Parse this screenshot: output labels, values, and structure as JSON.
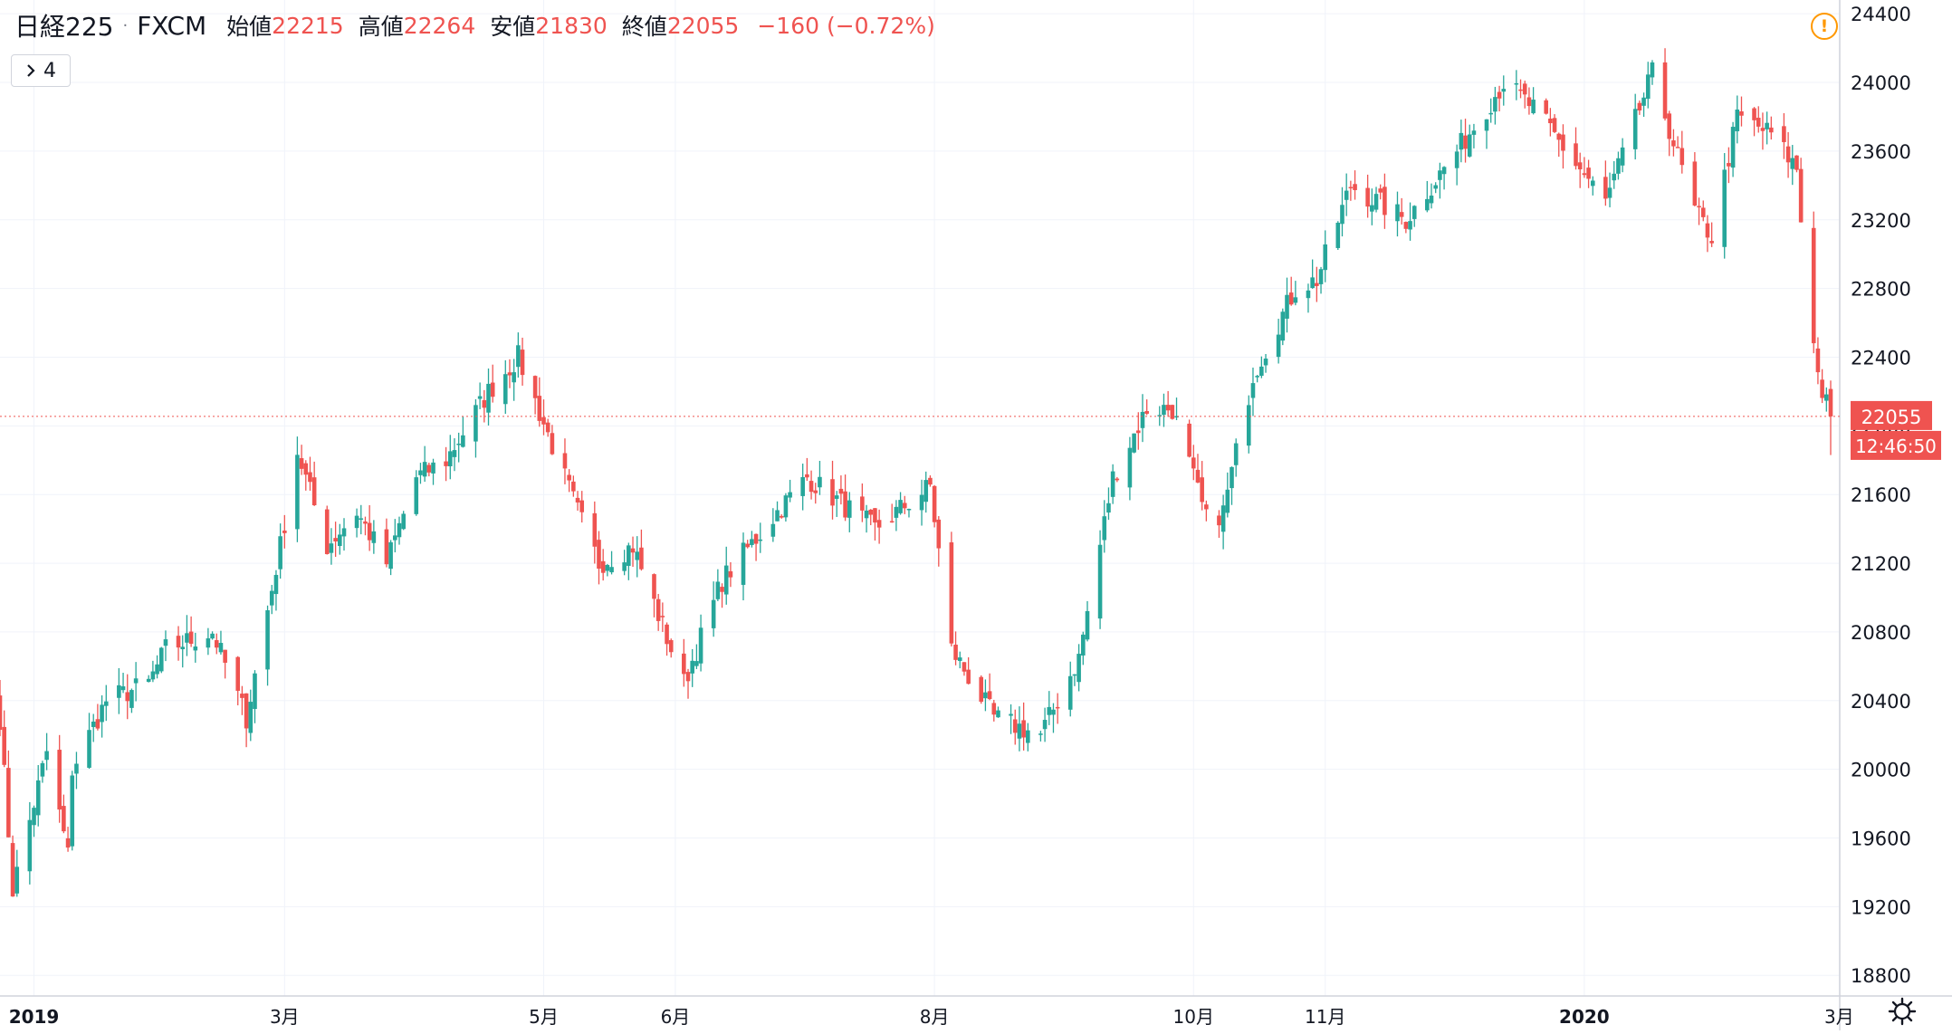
{
  "header": {
    "symbol": "日経225",
    "separator": "·",
    "source": "FXCM",
    "open_label": "始値",
    "open": "22215",
    "high_label": "高値",
    "high": "22264",
    "low_label": "安値",
    "low": "21830",
    "close_label": "終値",
    "close": "22055",
    "change": "−160 (−0.72%)",
    "collapse_count": "4"
  },
  "price_axis": {
    "last_price": "22055",
    "countdown": "12:46:50"
  },
  "colors": {
    "up": "#26a69a",
    "down": "#ef5350",
    "grid": "#f0f3fa",
    "text": "#131722",
    "warning": "#ff9800"
  },
  "icons": {
    "collapse": "chevron-right-icon",
    "warning": "warning-icon",
    "settings": "gear-icon"
  },
  "chart_data": {
    "type": "candlestick",
    "title": "日経225 · FXCM",
    "interval": "daily",
    "x_range": [
      "2018-12-24",
      "2020-02-28"
    ],
    "ylim": [
      18680,
      24480
    ],
    "y_ticks": [
      18800,
      19200,
      19600,
      20000,
      20400,
      20800,
      21200,
      21600,
      22000,
      22400,
      22800,
      23200,
      23600,
      24000,
      24400
    ],
    "x_ticks": [
      {
        "date": "2019-01-01",
        "label": "2019",
        "bold": true
      },
      {
        "date": "2019-03-01",
        "label": "3月"
      },
      {
        "date": "2019-05-01",
        "label": "5月"
      },
      {
        "date": "2019-06-01",
        "label": "6月"
      },
      {
        "date": "2019-08-01",
        "label": "8月"
      },
      {
        "date": "2019-10-01",
        "label": "10月"
      },
      {
        "date": "2019-11-01",
        "label": "11月"
      },
      {
        "date": "2020-01-01",
        "label": "2020",
        "bold": true
      },
      {
        "date": "2020-03-01",
        "label": "3月"
      }
    ],
    "grid": true,
    "current_price_line": 22055,
    "close_anchors": [
      [
        "2018-12-24",
        20300
      ],
      [
        "2018-12-27",
        19300
      ],
      [
        "2019-01-04",
        20100
      ],
      [
        "2019-01-09",
        19500
      ],
      [
        "2019-01-10",
        20000
      ],
      [
        "2019-01-18",
        20400
      ],
      [
        "2019-01-28",
        20500
      ],
      [
        "2019-02-01",
        20700
      ],
      [
        "2019-02-12",
        20800
      ],
      [
        "2019-02-20",
        20300
      ],
      [
        "2019-02-28",
        21300
      ],
      [
        "2019-03-04",
        21850
      ],
      [
        "2019-03-11",
        21300
      ],
      [
        "2019-03-18",
        21500
      ],
      [
        "2019-03-25",
        21200
      ],
      [
        "2019-04-01",
        21700
      ],
      [
        "2019-04-08",
        21800
      ],
      [
        "2019-04-18",
        22200
      ],
      [
        "2019-04-25",
        22400
      ],
      [
        "2019-05-09",
        21500
      ],
      [
        "2019-05-14",
        21200
      ],
      [
        "2019-05-22",
        21300
      ],
      [
        "2019-06-03",
        20500
      ],
      [
        "2019-06-12",
        21100
      ],
      [
        "2019-06-25",
        21500
      ],
      [
        "2019-07-02",
        21700
      ],
      [
        "2019-07-18",
        21400
      ],
      [
        "2019-07-31",
        21650
      ],
      [
        "2019-08-05",
        20700
      ],
      [
        "2019-08-15",
        20300
      ],
      [
        "2019-08-26",
        20200
      ],
      [
        "2019-09-04",
        20650
      ],
      [
        "2019-09-12",
        21700
      ],
      [
        "2019-09-20",
        22100
      ],
      [
        "2019-09-26",
        22100
      ],
      [
        "2019-10-04",
        21450
      ],
      [
        "2019-10-08",
        21500
      ],
      [
        "2019-10-15",
        22300
      ],
      [
        "2019-10-25",
        22800
      ],
      [
        "2019-10-30",
        22850
      ],
      [
        "2019-11-07",
        23400
      ],
      [
        "2019-11-20",
        23200
      ],
      [
        "2019-12-02",
        23600
      ],
      [
        "2019-12-13",
        24000
      ],
      [
        "2019-12-20",
        23850
      ],
      [
        "2020-01-06",
        23300
      ],
      [
        "2020-01-17",
        24050
      ],
      [
        "2020-01-27",
        23250
      ],
      [
        "2020-01-31",
        23100
      ],
      [
        "2020-02-06",
        23800
      ],
      [
        "2020-02-14",
        23700
      ],
      [
        "2020-02-20",
        23500
      ],
      [
        "2020-02-21",
        23200
      ],
      [
        "2020-02-25",
        22300
      ],
      [
        "2020-02-26",
        22200
      ],
      [
        "2020-02-28",
        22055
      ]
    ],
    "last_candle": {
      "date": "2020-02-28",
      "open": 22215,
      "high": 22264,
      "low": 21830,
      "close": 22055
    }
  }
}
